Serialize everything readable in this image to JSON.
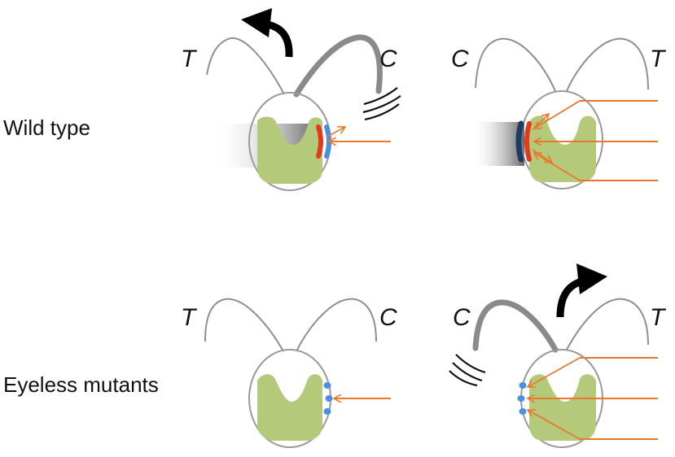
{
  "rows": [
    {
      "label": "Wild type"
    },
    {
      "label": "Eyeless mutants"
    }
  ],
  "cells": [
    {
      "left_flagellum": "T",
      "right_flagellum": "C"
    },
    {
      "left_flagellum": "C",
      "right_flagellum": "T"
    },
    {
      "left_flagellum": "T",
      "right_flagellum": "C"
    },
    {
      "left_flagellum": "C",
      "right_flagellum": "T"
    }
  ],
  "colors": {
    "cell_outline": "#9a9a9a",
    "chloroplast": "#b5c97a",
    "eyespot_pigment": "#e23a1c",
    "eyespot_shadow": "#1e3b63",
    "photoreceptor": "#4a90e2",
    "light_ray": "#e8782c",
    "beating_flagellum": "#8a8a8a",
    "turn_arrow": "#000000"
  },
  "icons": {
    "turn": "curved-turn-arrow-icon",
    "beat": "beat-motion-icon"
  }
}
